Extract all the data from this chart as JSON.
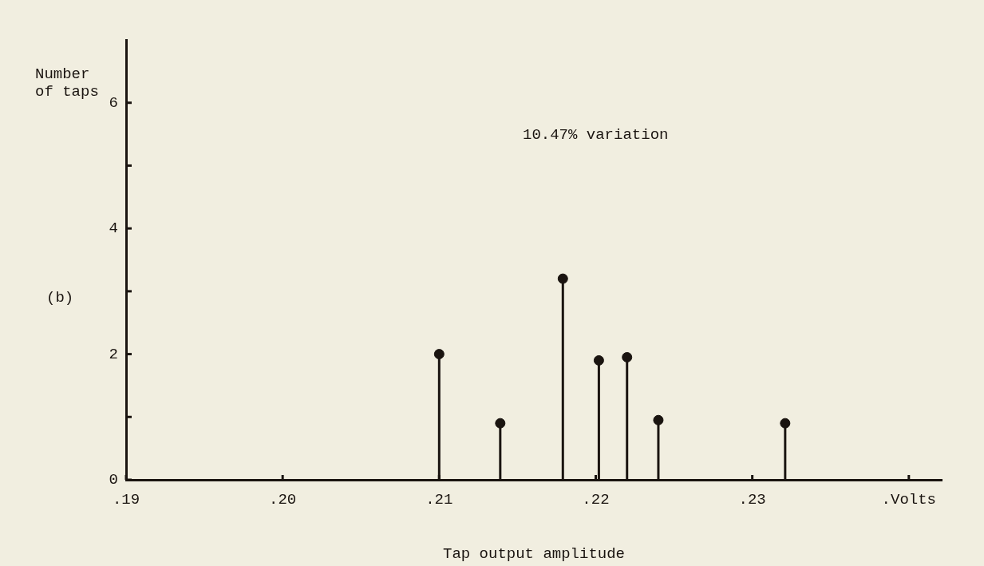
{
  "chart_data": {
    "type": "lollipop",
    "xlabel": "Tap output amplitude",
    "ylabel": "Number\nof taps",
    "annotations": [
      "10.47% variation",
      "(b)"
    ],
    "x": [
      0.21,
      0.2139,
      0.2179,
      0.2202,
      0.222,
      0.224,
      0.2321
    ],
    "values": [
      2,
      0.9,
      3.2,
      1.9,
      1.95,
      0.95,
      0.9
    ],
    "color": "#1a1410",
    "marker": "circle",
    "xlim": [
      0.19,
      0.2421
    ],
    "xticks": [
      {
        "value": 0.19,
        "label": ".19"
      },
      {
        "value": 0.2,
        "label": ".20"
      },
      {
        "value": 0.21,
        "label": ".21"
      },
      {
        "value": 0.22,
        "label": ".22"
      },
      {
        "value": 0.23,
        "label": ".23"
      },
      {
        "value": 0.24,
        "label": ".Volts"
      }
    ],
    "ylim": [
      0,
      7
    ],
    "yticks": [
      0,
      {
        "value": 1,
        "label": null
      },
      2,
      {
        "value": 3,
        "label": null
      },
      4,
      {
        "value": 5,
        "label": null
      },
      6
    ],
    "grid": false,
    "legend": false
  }
}
